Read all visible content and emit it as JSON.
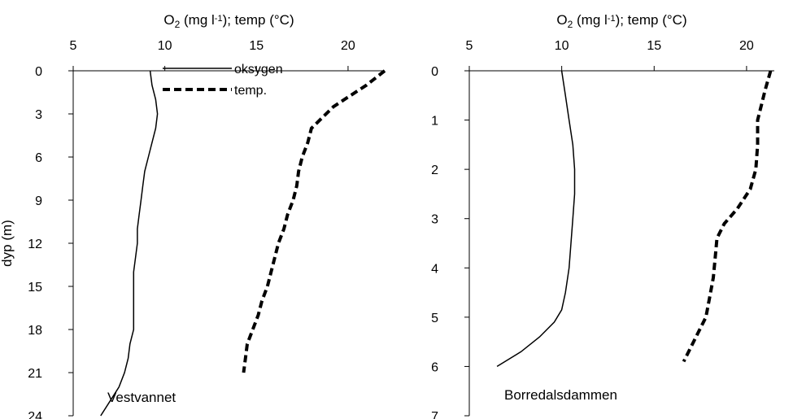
{
  "chart_data": [
    {
      "type": "line",
      "name": "Vestvannet",
      "annotation": "Vestvannet",
      "xlabel_parts": {
        "pre": "O",
        "sub": "2",
        "mid": " (mg l",
        "sup": "-1",
        "post": "); temp (°C)"
      },
      "ylabel": "dyp (m)",
      "xlim": [
        5,
        22
      ],
      "xticks": [
        "5",
        "10",
        "15",
        "20"
      ],
      "xtick_values": [
        5,
        10,
        15,
        20
      ],
      "ylim": [
        0,
        24
      ],
      "yticks": [
        "0",
        "3",
        "6",
        "9",
        "12",
        "15",
        "18",
        "21",
        "24"
      ],
      "ytick_values": [
        0,
        3,
        6,
        9,
        12,
        15,
        18,
        21,
        24
      ],
      "x_axis_position": "top",
      "y_inverted": true,
      "legend": {
        "placement": "top-center",
        "entries": [
          "oksygen",
          "temp."
        ]
      },
      "series": [
        {
          "name": "oksygen",
          "style": "solid",
          "points": [
            [
              9.2,
              0
            ],
            [
              9.3,
              1
            ],
            [
              9.5,
              2
            ],
            [
              9.6,
              3
            ],
            [
              9.5,
              4
            ],
            [
              9.3,
              5
            ],
            [
              9.1,
              6
            ],
            [
              8.9,
              7
            ],
            [
              8.8,
              8
            ],
            [
              8.7,
              9
            ],
            [
              8.6,
              10
            ],
            [
              8.5,
              11
            ],
            [
              8.5,
              12
            ],
            [
              8.4,
              13
            ],
            [
              8.3,
              14
            ],
            [
              8.3,
              15
            ],
            [
              8.3,
              16
            ],
            [
              8.3,
              17
            ],
            [
              8.3,
              18
            ],
            [
              8.1,
              19
            ],
            [
              8.0,
              20
            ],
            [
              7.8,
              21
            ],
            [
              7.5,
              22
            ],
            [
              7.0,
              23
            ],
            [
              6.5,
              24
            ]
          ]
        },
        {
          "name": "temp.",
          "style": "dashed",
          "points": [
            [
              22.0,
              0
            ],
            [
              21.0,
              1
            ],
            [
              19.8,
              2
            ],
            [
              19.2,
              2.5
            ],
            [
              18.0,
              4
            ],
            [
              17.8,
              5
            ],
            [
              17.5,
              6
            ],
            [
              17.3,
              7
            ],
            [
              17.2,
              8
            ],
            [
              17.0,
              9
            ],
            [
              16.7,
              10
            ],
            [
              16.5,
              11
            ],
            [
              16.2,
              12
            ],
            [
              16.0,
              13
            ],
            [
              15.8,
              14
            ],
            [
              15.6,
              15
            ],
            [
              15.3,
              16
            ],
            [
              15.1,
              17
            ],
            [
              14.8,
              18
            ],
            [
              14.5,
              19
            ],
            [
              14.4,
              20
            ],
            [
              14.3,
              21
            ]
          ]
        }
      ]
    },
    {
      "type": "line",
      "name": "Borredalsdammen",
      "annotation": "Borredalsdammen",
      "xlabel_parts": {
        "pre": "O",
        "sub": "2",
        "mid": " (mg l",
        "sup": "-1",
        "post": "); temp (°C)"
      },
      "ylabel": "",
      "xlim": [
        5,
        21.5
      ],
      "xticks": [
        "5",
        "10",
        "15",
        "20"
      ],
      "xtick_values": [
        5,
        10,
        15,
        20
      ],
      "ylim": [
        0,
        7
      ],
      "yticks": [
        "0",
        "1",
        "2",
        "3",
        "4",
        "5",
        "6",
        "7"
      ],
      "ytick_values": [
        0,
        1,
        2,
        3,
        4,
        5,
        6,
        7
      ],
      "x_axis_position": "top",
      "y_inverted": true,
      "series": [
        {
          "name": "oksygen",
          "style": "solid",
          "points": [
            [
              10.0,
              0
            ],
            [
              10.2,
              0.5
            ],
            [
              10.4,
              1.0
            ],
            [
              10.6,
              1.5
            ],
            [
              10.7,
              2.0
            ],
            [
              10.7,
              2.5
            ],
            [
              10.6,
              3.0
            ],
            [
              10.5,
              3.5
            ],
            [
              10.4,
              4.0
            ],
            [
              10.2,
              4.5
            ],
            [
              10.0,
              4.85
            ],
            [
              9.6,
              5.1
            ],
            [
              8.8,
              5.4
            ],
            [
              7.8,
              5.7
            ],
            [
              6.5,
              6.0
            ]
          ]
        },
        {
          "name": "temp.",
          "style": "dashed",
          "points": [
            [
              21.3,
              0
            ],
            [
              21.0,
              0.4
            ],
            [
              20.8,
              0.7
            ],
            [
              20.6,
              1.0
            ],
            [
              20.6,
              1.5
            ],
            [
              20.5,
              2.0
            ],
            [
              20.2,
              2.4
            ],
            [
              19.5,
              2.8
            ],
            [
              18.8,
              3.1
            ],
            [
              18.4,
              3.4
            ],
            [
              18.3,
              3.8
            ],
            [
              18.2,
              4.2
            ],
            [
              18.0,
              4.6
            ],
            [
              17.8,
              5.0
            ],
            [
              17.4,
              5.3
            ],
            [
              17.0,
              5.6
            ],
            [
              16.6,
              5.9
            ]
          ]
        }
      ]
    }
  ]
}
